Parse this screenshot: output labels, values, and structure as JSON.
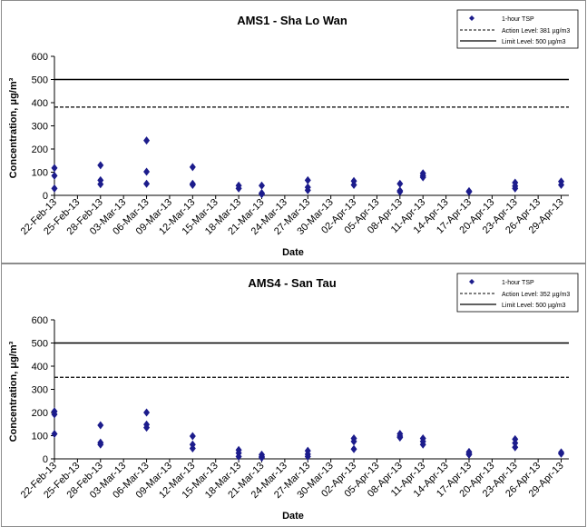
{
  "chart_data": [
    {
      "type": "scatter",
      "title": "AMS1 - Sha Lo Wan",
      "xlabel": "Date",
      "ylabel": "Concentration, μg/m³",
      "ylim": [
        0,
        600
      ],
      "yticks": [
        "0",
        "100",
        "200",
        "300",
        "400",
        "500",
        "600"
      ],
      "xticks": [
        "22-Feb-13",
        "25-Feb-13",
        "28-Feb-13",
        "03-Mar-13",
        "06-Mar-13",
        "09-Mar-13",
        "12-Mar-13",
        "15-Mar-13",
        "18-Mar-13",
        "21-Mar-13",
        "24-Mar-13",
        "27-Mar-13",
        "30-Mar-13",
        "02-Apr-13",
        "05-Apr-13",
        "08-Apr-13",
        "11-Apr-13",
        "14-Apr-13",
        "17-Apr-13",
        "20-Apr-13",
        "23-Apr-13",
        "26-Apr-13",
        "29-Apr-13"
      ],
      "xlim": [
        "22-Feb-13",
        "30-Apr-13"
      ],
      "grid": false,
      "legend_position": "top-right",
      "legend": [
        "1-hour TSP",
        "Action Level: 381 µg/m3",
        "Limit Level: 500 µg/m3"
      ],
      "series": [
        {
          "name": "1-hour TSP",
          "marker": "diamond",
          "color": "#1c1c8c",
          "points": [
            {
              "x": "22-Feb-13",
              "y": 118
            },
            {
              "x": "22-Feb-13",
              "y": 85
            },
            {
              "x": "22-Feb-13",
              "y": 30
            },
            {
              "x": "28-Feb-13",
              "y": 130
            },
            {
              "x": "28-Feb-13",
              "y": 65
            },
            {
              "x": "28-Feb-13",
              "y": 48
            },
            {
              "x": "06-Mar-13",
              "y": 237
            },
            {
              "x": "06-Mar-13",
              "y": 102
            },
            {
              "x": "06-Mar-13",
              "y": 50
            },
            {
              "x": "12-Mar-13",
              "y": 122
            },
            {
              "x": "12-Mar-13",
              "y": 50
            },
            {
              "x": "12-Mar-13",
              "y": 45
            },
            {
              "x": "18-Mar-13",
              "y": 42
            },
            {
              "x": "18-Mar-13",
              "y": 30
            },
            {
              "x": "21-Mar-13",
              "y": 42
            },
            {
              "x": "21-Mar-13",
              "y": 10
            },
            {
              "x": "21-Mar-13",
              "y": 5
            },
            {
              "x": "27-Mar-13",
              "y": 65
            },
            {
              "x": "27-Mar-13",
              "y": 35
            },
            {
              "x": "27-Mar-13",
              "y": 22
            },
            {
              "x": "02-Apr-13",
              "y": 62
            },
            {
              "x": "02-Apr-13",
              "y": 45
            },
            {
              "x": "08-Apr-13",
              "y": 50
            },
            {
              "x": "08-Apr-13",
              "y": 20
            },
            {
              "x": "08-Apr-13",
              "y": 15
            },
            {
              "x": "11-Apr-13",
              "y": 95
            },
            {
              "x": "11-Apr-13",
              "y": 85
            },
            {
              "x": "11-Apr-13",
              "y": 78
            },
            {
              "x": "17-Apr-13",
              "y": 18
            },
            {
              "x": "17-Apr-13",
              "y": 15
            },
            {
              "x": "23-Apr-13",
              "y": 55
            },
            {
              "x": "23-Apr-13",
              "y": 40
            },
            {
              "x": "23-Apr-13",
              "y": 30
            },
            {
              "x": "29-Apr-13",
              "y": 60
            },
            {
              "x": "29-Apr-13",
              "y": 45
            }
          ]
        },
        {
          "name": "Action Level: 381 µg/m3",
          "style": "dashed",
          "value": 381
        },
        {
          "name": "Limit Level: 500 µg/m3",
          "style": "solid",
          "value": 500
        }
      ]
    },
    {
      "type": "scatter",
      "title": "AMS4 - San Tau",
      "xlabel": "Date",
      "ylabel": "Concentration, μg/m³",
      "ylim": [
        0,
        600
      ],
      "yticks": [
        "0",
        "100",
        "200",
        "300",
        "400",
        "500",
        "600"
      ],
      "xticks": [
        "22-Feb-13",
        "25-Feb-13",
        "28-Feb-13",
        "03-Mar-13",
        "06-Mar-13",
        "09-Mar-13",
        "12-Mar-13",
        "15-Mar-13",
        "18-Mar-13",
        "21-Mar-13",
        "24-Mar-13",
        "27-Mar-13",
        "30-Mar-13",
        "02-Apr-13",
        "05-Apr-13",
        "08-Apr-13",
        "11-Apr-13",
        "14-Apr-13",
        "17-Apr-13",
        "20-Apr-13",
        "23-Apr-13",
        "26-Apr-13",
        "29-Apr-13"
      ],
      "xlim": [
        "22-Feb-13",
        "30-Apr-13"
      ],
      "grid": false,
      "legend_position": "top-right",
      "legend": [
        "1-hour TSP",
        "Action Level: 352 µg/m3",
        "Limit Level: 500 µg/m3"
      ],
      "series": [
        {
          "name": "1-hour TSP",
          "marker": "diamond",
          "color": "#1c1c8c",
          "points": [
            {
              "x": "22-Feb-13",
              "y": 205
            },
            {
              "x": "22-Feb-13",
              "y": 192
            },
            {
              "x": "22-Feb-13",
              "y": 108
            },
            {
              "x": "28-Feb-13",
              "y": 145
            },
            {
              "x": "28-Feb-13",
              "y": 70
            },
            {
              "x": "28-Feb-13",
              "y": 62
            },
            {
              "x": "06-Mar-13",
              "y": 200
            },
            {
              "x": "06-Mar-13",
              "y": 148
            },
            {
              "x": "06-Mar-13",
              "y": 135
            },
            {
              "x": "12-Mar-13",
              "y": 98
            },
            {
              "x": "12-Mar-13",
              "y": 62
            },
            {
              "x": "12-Mar-13",
              "y": 45
            },
            {
              "x": "18-Mar-13",
              "y": 38
            },
            {
              "x": "18-Mar-13",
              "y": 25
            },
            {
              "x": "18-Mar-13",
              "y": 10
            },
            {
              "x": "21-Mar-13",
              "y": 18
            },
            {
              "x": "21-Mar-13",
              "y": 10
            },
            {
              "x": "21-Mar-13",
              "y": 5
            },
            {
              "x": "27-Mar-13",
              "y": 35
            },
            {
              "x": "27-Mar-13",
              "y": 20
            },
            {
              "x": "27-Mar-13",
              "y": 10
            },
            {
              "x": "02-Apr-13",
              "y": 88
            },
            {
              "x": "02-Apr-13",
              "y": 75
            },
            {
              "x": "02-Apr-13",
              "y": 42
            },
            {
              "x": "08-Apr-13",
              "y": 108
            },
            {
              "x": "08-Apr-13",
              "y": 98
            },
            {
              "x": "08-Apr-13",
              "y": 92
            },
            {
              "x": "11-Apr-13",
              "y": 88
            },
            {
              "x": "11-Apr-13",
              "y": 75
            },
            {
              "x": "11-Apr-13",
              "y": 62
            },
            {
              "x": "17-Apr-13",
              "y": 30
            },
            {
              "x": "17-Apr-13",
              "y": 22
            },
            {
              "x": "17-Apr-13",
              "y": 18
            },
            {
              "x": "23-Apr-13",
              "y": 85
            },
            {
              "x": "23-Apr-13",
              "y": 68
            },
            {
              "x": "23-Apr-13",
              "y": 50
            },
            {
              "x": "29-Apr-13",
              "y": 28
            },
            {
              "x": "29-Apr-13",
              "y": 22
            }
          ]
        },
        {
          "name": "Action Level: 352 µg/m3",
          "style": "dashed",
          "value": 352
        },
        {
          "name": "Limit Level: 500 µg/m3",
          "style": "solid",
          "value": 500
        }
      ]
    }
  ]
}
